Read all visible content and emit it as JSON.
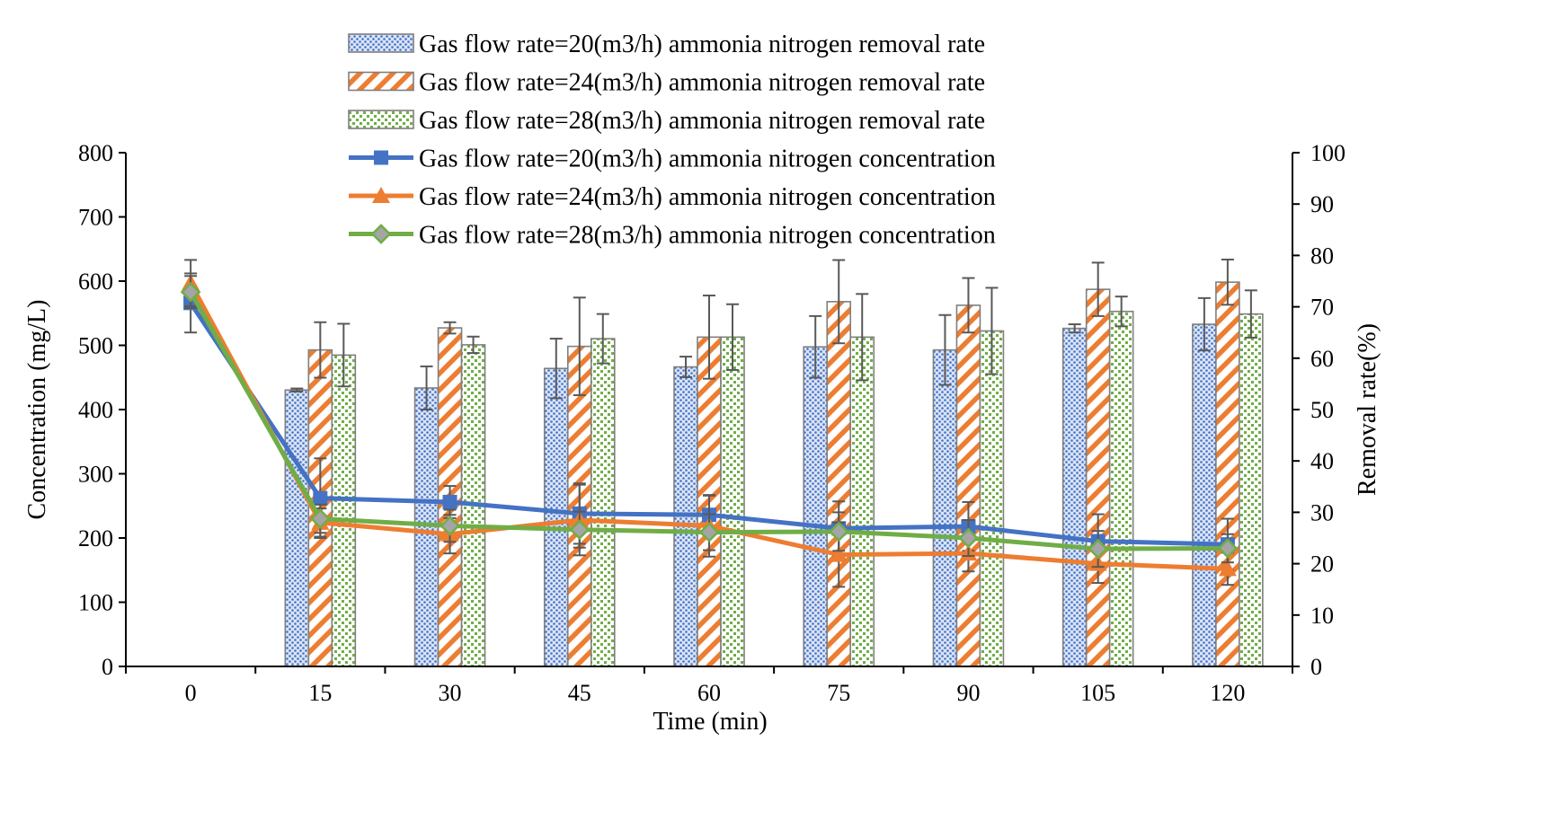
{
  "chart_data": {
    "type": "bar",
    "title": "",
    "xlabel": "Time (min)",
    "ylabel": "Concentration (mg/L)",
    "y2label": "Removal rate(%)",
    "categories": [
      "0",
      "15",
      "30",
      "45",
      "60",
      "75",
      "90",
      "105",
      "120"
    ],
    "ylim": [
      0,
      800
    ],
    "y2lim": [
      0,
      100
    ],
    "yticks": [
      "0",
      "100",
      "200",
      "300",
      "400",
      "500",
      "600",
      "700",
      "800"
    ],
    "y2ticks": [
      "0",
      "10",
      "20",
      "30",
      "40",
      "50",
      "60",
      "70",
      "80",
      "90",
      "100"
    ],
    "legend_position": "top-center",
    "colors": {
      "blue": "#4472c4",
      "orange": "#ed7d31",
      "green": "#70ad47",
      "error": "#595959",
      "bar_outline": "#7f7f7f"
    },
    "bar_series": [
      {
        "name": "Gas flow rate=20(m3/h) ammonia nitrogen removal rate",
        "pattern": "dots",
        "color": "blue",
        "values": [
          null,
          53.8,
          54.2,
          58.0,
          58.3,
          62.2,
          61.6,
          65.8,
          66.6
        ],
        "errors": [
          null,
          0.3,
          4.2,
          5.8,
          2.0,
          6.0,
          6.8,
          0.8,
          5.1
        ]
      },
      {
        "name": "Gas flow rate=24(m3/h) ammonia nitrogen removal rate",
        "pattern": "stripes",
        "color": "orange",
        "values": [
          null,
          61.6,
          65.9,
          62.3,
          64.1,
          71.0,
          70.3,
          73.4,
          74.8
        ],
        "errors": [
          null,
          5.4,
          1.1,
          9.5,
          8.1,
          8.1,
          5.3,
          5.2,
          4.4
        ]
      },
      {
        "name": "Gas flow rate=28(m3/h) ammonia nitrogen removal rate",
        "pattern": "checks",
        "color": "green",
        "values": [
          null,
          60.6,
          62.6,
          63.8,
          64.1,
          64.1,
          65.3,
          69.1,
          68.6
        ],
        "errors": [
          null,
          6.1,
          1.6,
          4.8,
          6.4,
          8.4,
          8.4,
          2.9,
          4.6
        ]
      }
    ],
    "line_series": [
      {
        "name": "Gas flow rate=20(m3/h) ammonia nitrogen concentration",
        "marker": "square",
        "color": "blue",
        "values": [
          566,
          262,
          256,
          238,
          236,
          215,
          218,
          195,
          190
        ],
        "errors": [
          46,
          62,
          25,
          47,
          30,
          42,
          38,
          42,
          40
        ]
      },
      {
        "name": "Gas flow rate=24(m3/h) ammonia nitrogen concentration",
        "marker": "triangle",
        "color": "orange",
        "values": [
          597,
          224,
          206,
          228,
          219,
          174,
          176,
          160,
          152
        ],
        "errors": [
          36,
          22,
          30,
          55,
          48,
          50,
          28,
          30,
          25
        ]
      },
      {
        "name": "Gas flow rate=28(m3/h) ammonia nitrogen concentration",
        "marker": "diamond",
        "color": "green",
        "values": [
          583,
          230,
          219,
          213,
          209,
          210,
          200,
          183,
          184
        ],
        "errors": [
          25,
          22,
          25,
          28,
          28,
          30,
          28,
          28,
          22
        ]
      }
    ]
  }
}
